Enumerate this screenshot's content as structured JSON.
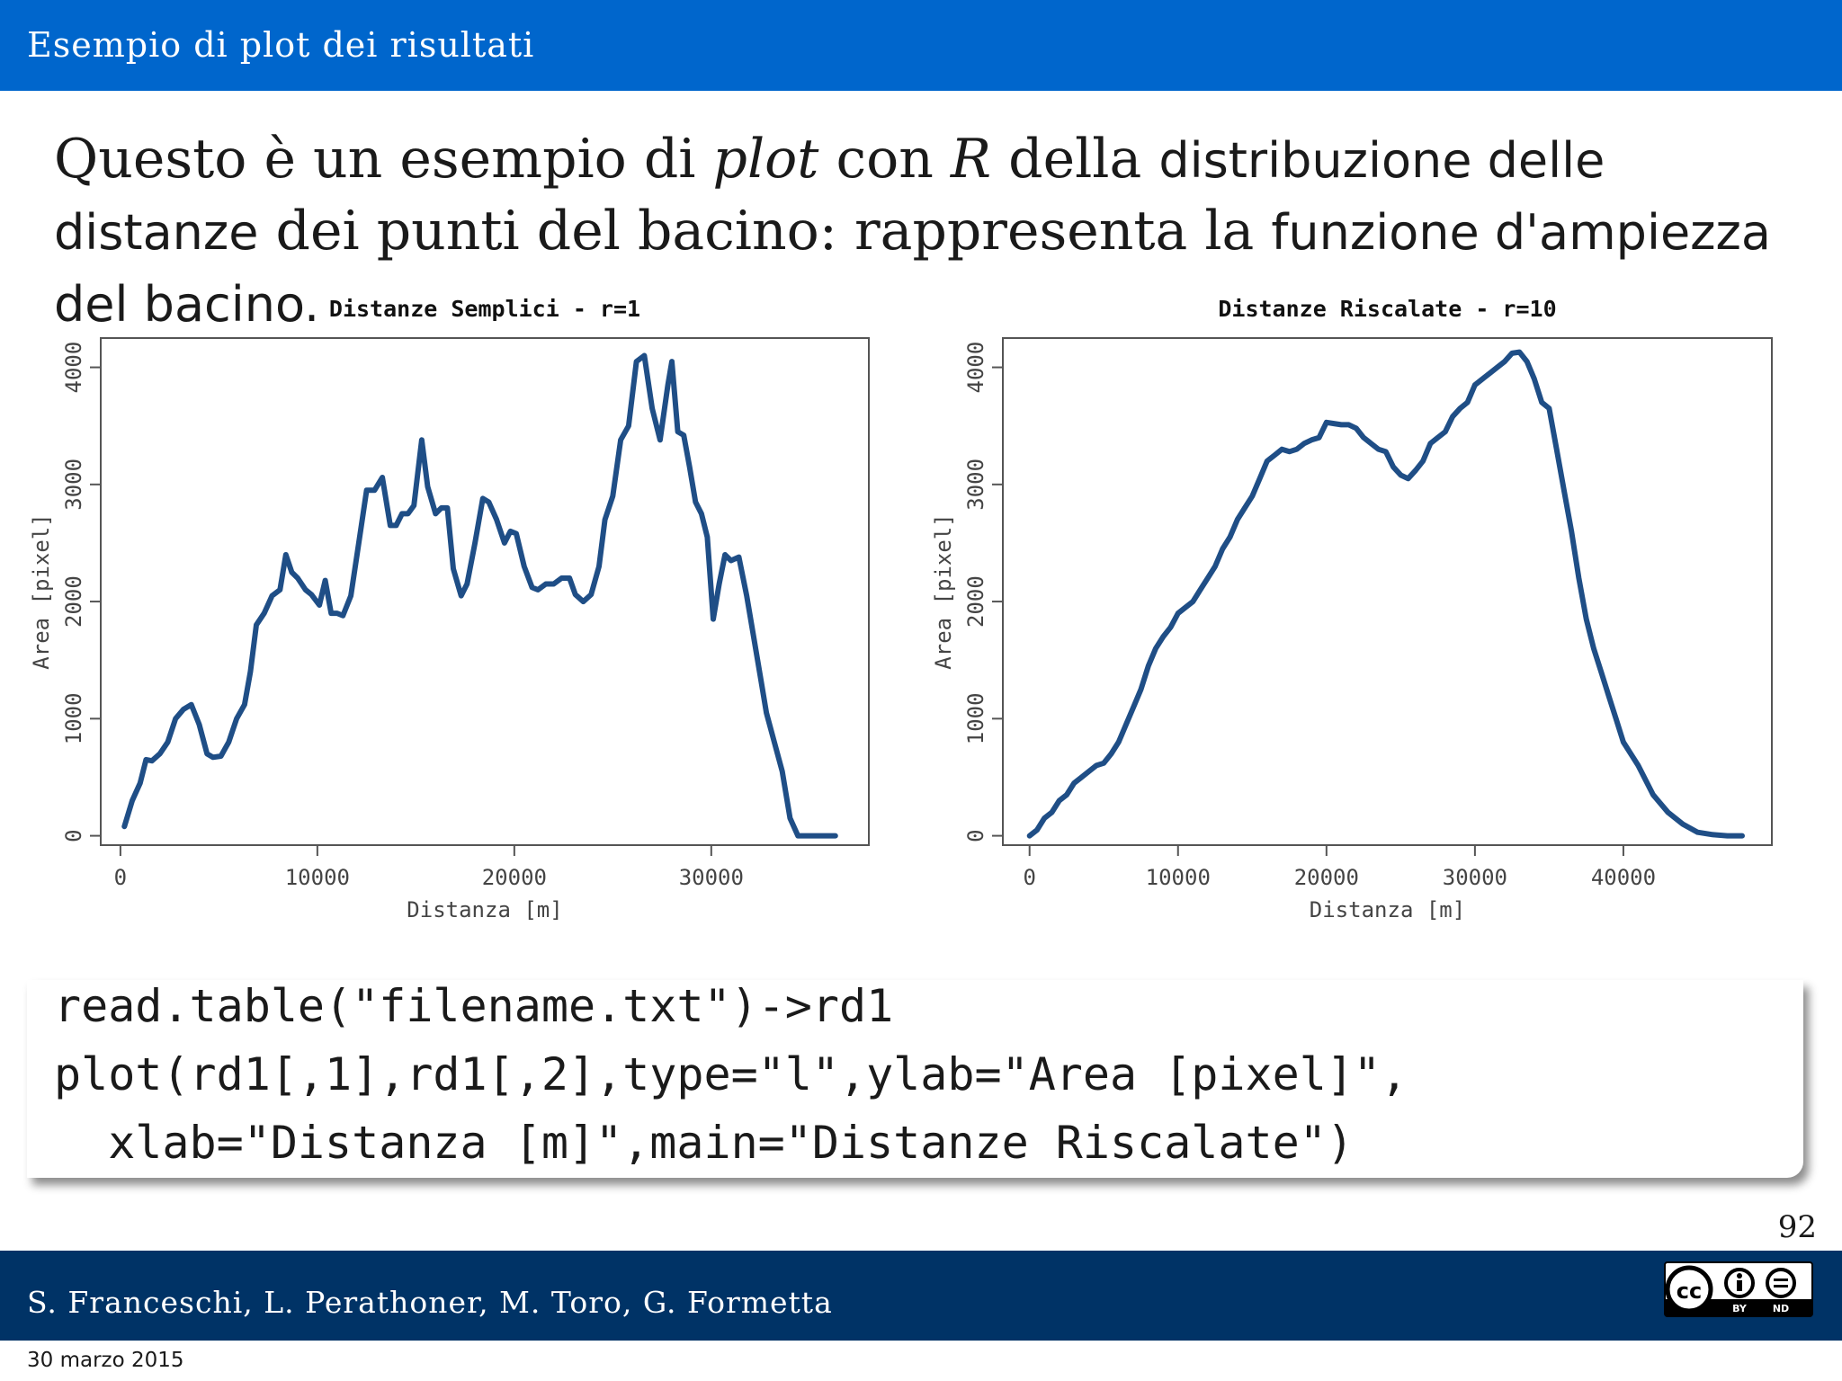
{
  "header": {
    "title": "Esempio di plot dei risultati"
  },
  "intro": {
    "part1": "Questo è un esempio di ",
    "plot_word": "plot",
    "part2": " con ",
    "r_word": "R",
    "part3": " della ",
    "sans1": "distribuzione delle distanze",
    "part4": " dei punti del bacino: rappresenta la ",
    "sans2": "funzione d'ampiezza del bacino."
  },
  "code": {
    "line1": "read.table(\"filename.txt\")->rd1",
    "line2": "plot(rd1[,1],rd1[,2],type=\"l\",ylab=\"Area [pixel]\",",
    "line3": "  xlab=\"Distanza [m]\",main=\"Distanze Riscalate\")"
  },
  "page_number": "92",
  "footer": {
    "authors": "S. Franceschi, L. Perathoner, M. Toro, G. Formetta",
    "license_icon": "cc-by-nd-icon",
    "license_labels": [
      "BY",
      "ND"
    ],
    "date": "30 marzo 2015"
  },
  "colors": {
    "header": "#0066cc",
    "footer": "#003366",
    "line": "#1f4e86"
  },
  "chart_data": [
    {
      "type": "line",
      "title": "Distanze Semplici - r=1",
      "xlabel": "Distanza [m]",
      "ylabel": "Area [pixel]",
      "xlim": [
        -1000,
        38000
      ],
      "ylim": [
        -80,
        4250
      ],
      "xticks": [
        0,
        10000,
        20000,
        30000
      ],
      "xtick_labels": [
        "0",
        "10000",
        "20000",
        "30000"
      ],
      "yticks": [
        0,
        1000,
        2000,
        3000,
        4000
      ],
      "ytick_labels": [
        "0",
        "1000",
        "2000",
        "3000",
        "4000"
      ],
      "grid": false,
      "series": [
        {
          "x": [
            200,
            600,
            1000,
            1300,
            1600,
            2000,
            2400,
            2800,
            3200,
            3600,
            4000,
            4400,
            4700,
            5100,
            5500,
            5900,
            6300,
            6600,
            6900,
            7300,
            7700,
            8100,
            8400,
            8700,
            9000,
            9400,
            9700,
            10100,
            10400,
            10700,
            11000,
            11300,
            11700,
            12100,
            12500,
            12900,
            13300,
            13700,
            14000,
            14300,
            14600,
            14900,
            15300,
            15600,
            16000,
            16300,
            16600,
            16900,
            17300,
            17600,
            18000,
            18400,
            18700,
            19100,
            19500,
            19800,
            20100,
            20500,
            20900,
            21200,
            21600,
            22000,
            22400,
            22800,
            23100,
            23500,
            23900,
            24300,
            24600,
            25000,
            25400,
            25800,
            26200,
            26600,
            27000,
            27400,
            27800,
            28000,
            28300,
            28600,
            28900,
            29200,
            29500,
            29800,
            30100,
            30400,
            30700,
            31000,
            31400,
            31800,
            32100,
            32500,
            32800,
            33200,
            33600,
            34000,
            34400,
            34800,
            35200,
            35600,
            36000,
            36300
          ],
          "y": [
            80,
            300,
            450,
            650,
            640,
            700,
            800,
            1000,
            1080,
            1120,
            950,
            700,
            670,
            680,
            800,
            1000,
            1120,
            1400,
            1800,
            1900,
            2050,
            2100,
            2400,
            2250,
            2200,
            2100,
            2060,
            1970,
            2180,
            1900,
            1900,
            1880,
            2050,
            2500,
            2950,
            2950,
            3060,
            2650,
            2650,
            2750,
            2750,
            2820,
            3380,
            2980,
            2750,
            2800,
            2800,
            2280,
            2050,
            2150,
            2500,
            2880,
            2850,
            2700,
            2500,
            2600,
            2580,
            2300,
            2120,
            2100,
            2150,
            2150,
            2200,
            2200,
            2060,
            2000,
            2060,
            2300,
            2700,
            2900,
            3380,
            3500,
            4050,
            4100,
            3650,
            3380,
            3850,
            4050,
            3450,
            3420,
            3150,
            2850,
            2750,
            2550,
            1850,
            2150,
            2400,
            2350,
            2380,
            2050,
            1750,
            1350,
            1050,
            800,
            550,
            150,
            0,
            0,
            0,
            0,
            0,
            0
          ],
          "x_note": "",
          "y_note": ""
        }
      ]
    },
    {
      "type": "line",
      "title": "Distanze Riscalate - r=10",
      "xlabel": "Distanza [m]",
      "ylabel": "Area [pixel]",
      "xlim": [
        -1800,
        50000
      ],
      "ylim": [
        -80,
        4250
      ],
      "xticks": [
        0,
        10000,
        20000,
        30000,
        40000
      ],
      "xtick_labels": [
        "0",
        "10000",
        "20000",
        "30000",
        "40000"
      ],
      "yticks": [
        0,
        1000,
        2000,
        3000,
        4000
      ],
      "ytick_labels": [
        "0",
        "1000",
        "2000",
        "3000",
        "4000"
      ],
      "grid": false,
      "series": [
        {
          "x": [
            0,
            500,
            1000,
            1500,
            2000,
            2500,
            3000,
            3500,
            4000,
            4500,
            5000,
            5500,
            6000,
            6500,
            7000,
            7500,
            8000,
            8500,
            9000,
            9500,
            10000,
            10500,
            11000,
            11500,
            12000,
            12500,
            13000,
            13500,
            14000,
            14500,
            15000,
            15500,
            16000,
            16500,
            17000,
            17500,
            18000,
            18500,
            19000,
            19500,
            20000,
            20500,
            21000,
            21500,
            22000,
            22500,
            23000,
            23500,
            24000,
            24500,
            25000,
            25500,
            26000,
            26500,
            27000,
            27500,
            28000,
            28500,
            29000,
            29500,
            30000,
            30500,
            31000,
            31500,
            32000,
            32500,
            33000,
            33500,
            34000,
            34500,
            35000,
            35500,
            36000,
            36500,
            37000,
            37500,
            38000,
            38500,
            39000,
            39500,
            40000,
            41000,
            42000,
            43000,
            44000,
            45000,
            46000,
            47000,
            48000
          ],
          "y": [
            0,
            50,
            150,
            200,
            300,
            350,
            450,
            500,
            550,
            600,
            620,
            700,
            800,
            950,
            1100,
            1250,
            1450,
            1600,
            1700,
            1780,
            1900,
            1950,
            2000,
            2100,
            2200,
            2300,
            2450,
            2550,
            2700,
            2800,
            2900,
            3050,
            3200,
            3250,
            3300,
            3280,
            3300,
            3350,
            3380,
            3400,
            3530,
            3520,
            3510,
            3510,
            3480,
            3400,
            3350,
            3300,
            3280,
            3150,
            3080,
            3050,
            3120,
            3200,
            3350,
            3400,
            3450,
            3580,
            3650,
            3700,
            3850,
            3900,
            3950,
            4000,
            4050,
            4120,
            4130,
            4050,
            3900,
            3700,
            3650,
            3300,
            2950,
            2600,
            2200,
            1850,
            1600,
            1400,
            1200,
            1000,
            800,
            600,
            350,
            200,
            100,
            30,
            10,
            0,
            0
          ],
          "x_note": "",
          "y_note": ""
        }
      ]
    }
  ]
}
